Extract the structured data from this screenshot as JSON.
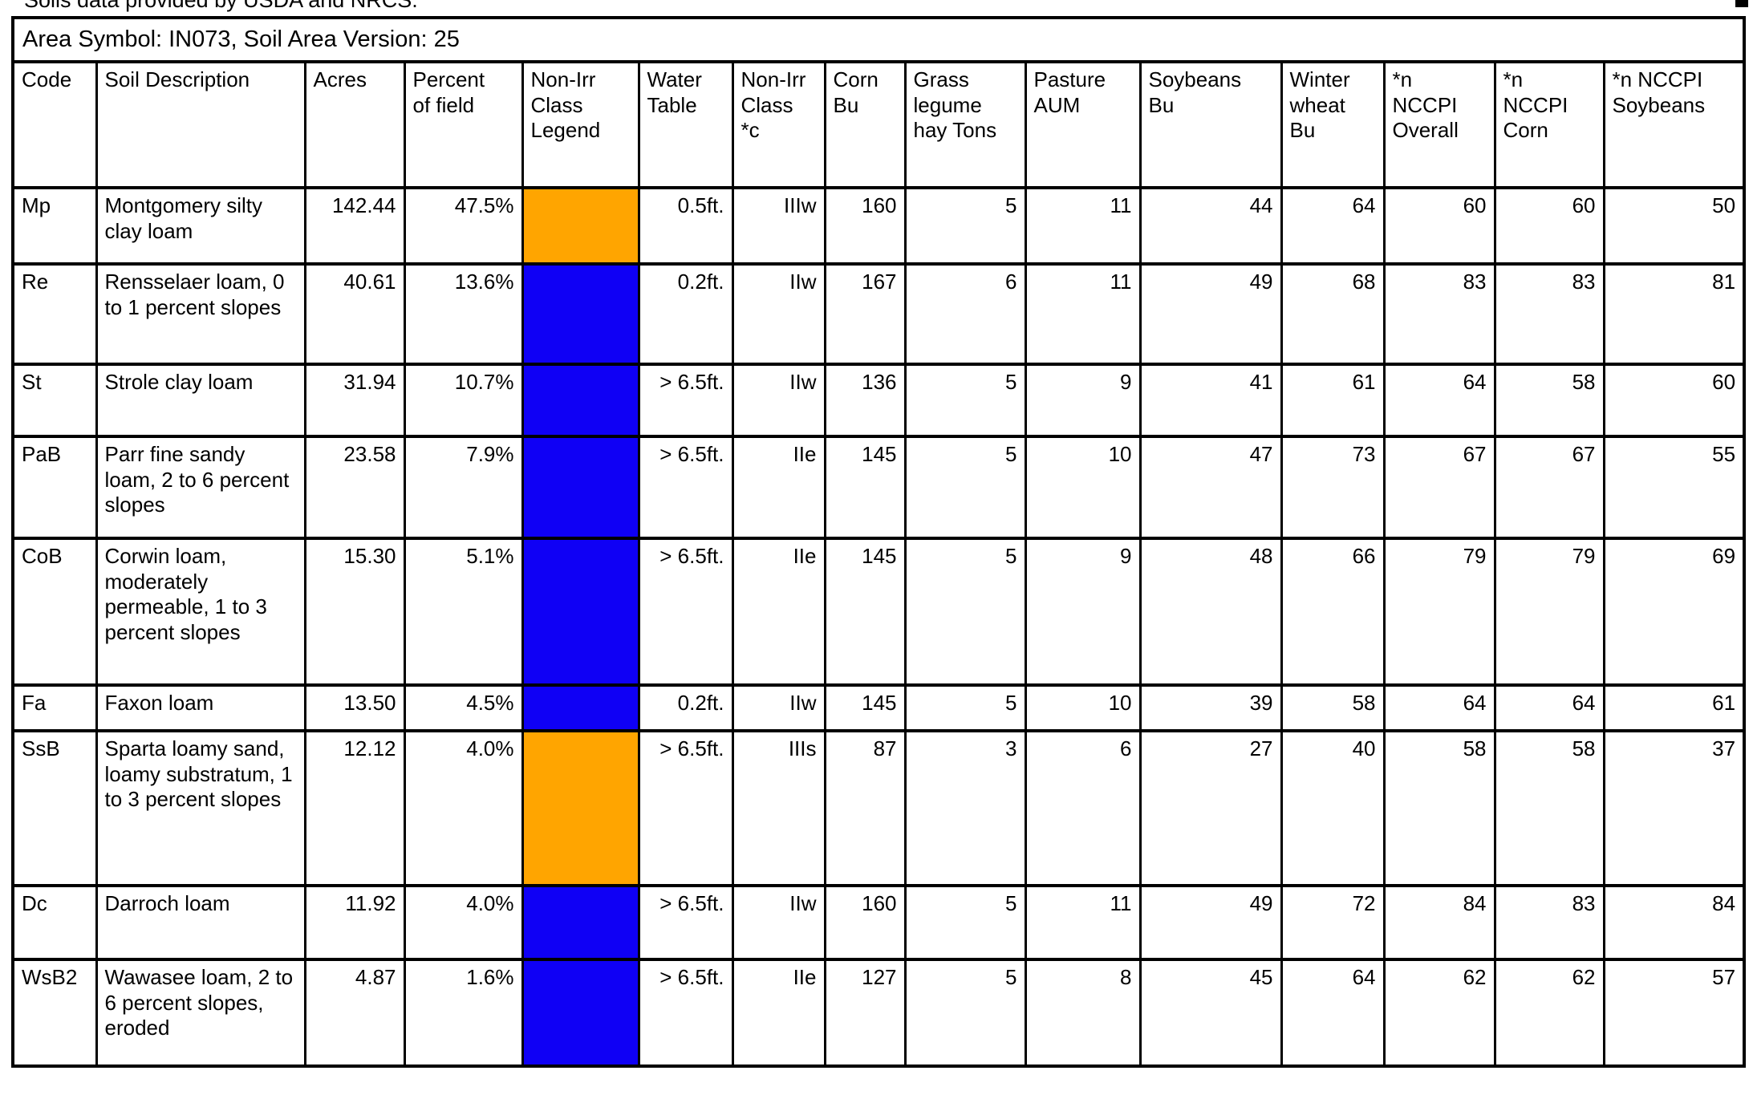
{
  "page": {
    "top_caption": "Soils data provided by USDA and NRCS.",
    "title": "Area Symbol: IN073, Soil Area Version: 25"
  },
  "legend_colors": {
    "orange": "#ffa500",
    "blue": "#0f00f5"
  },
  "table": {
    "columns": [
      {
        "key": "code",
        "label": "Code"
      },
      {
        "key": "description",
        "label": "Soil Description"
      },
      {
        "key": "acres",
        "label": "Acres"
      },
      {
        "key": "percent",
        "label": "Percent\nof field"
      },
      {
        "key": "legend",
        "label": "Non-Irr\nClass\nLegend"
      },
      {
        "key": "water",
        "label": "Water\nTable"
      },
      {
        "key": "nonirr_class",
        "label": "Non-Irr\nClass\n*c"
      },
      {
        "key": "corn",
        "label": "Corn\nBu"
      },
      {
        "key": "grass",
        "label": "Grass\nlegume\nhay Tons"
      },
      {
        "key": "pasture",
        "label": "Pasture\nAUM"
      },
      {
        "key": "soybeans",
        "label": "Soybeans\nBu"
      },
      {
        "key": "wheat",
        "label": "Winter\nwheat\nBu"
      },
      {
        "key": "nccpi_overall",
        "label": "*n\nNCCPI\nOverall"
      },
      {
        "key": "nccpi_corn",
        "label": "*n\nNCCPI\nCorn"
      },
      {
        "key": "nccpi_soybeans",
        "label": "*n NCCPI\nSoybeans"
      }
    ],
    "rows": [
      {
        "code": "Mp",
        "description": "Montgomery silty clay loam",
        "acres": "142.44",
        "percent": "47.5%",
        "legend": "orange",
        "water": "0.5ft.",
        "nonirr_class": "IIIw",
        "corn": "160",
        "grass": "5",
        "pasture": "11",
        "soybeans": "44",
        "wheat": "64",
        "nccpi_overall": "60",
        "nccpi_corn": "60",
        "nccpi_soybeans": "50"
      },
      {
        "code": "Re",
        "description": "Rensselaer loam, 0 to 1 percent slopes",
        "acres": "40.61",
        "percent": "13.6%",
        "legend": "blue",
        "water": "0.2ft.",
        "nonirr_class": "IIw",
        "corn": "167",
        "grass": "6",
        "pasture": "11",
        "soybeans": "49",
        "wheat": "68",
        "nccpi_overall": "83",
        "nccpi_corn": "83",
        "nccpi_soybeans": "81"
      },
      {
        "code": "St",
        "description": "Strole clay loam",
        "acres": "31.94",
        "percent": "10.7%",
        "legend": "blue",
        "water": "> 6.5ft.",
        "nonirr_class": "IIw",
        "corn": "136",
        "grass": "5",
        "pasture": "9",
        "soybeans": "41",
        "wheat": "61",
        "nccpi_overall": "64",
        "nccpi_corn": "58",
        "nccpi_soybeans": "60"
      },
      {
        "code": "PaB",
        "description": "Parr fine sandy loam, 2 to 6 percent slopes",
        "acres": "23.58",
        "percent": "7.9%",
        "legend": "blue",
        "water": "> 6.5ft.",
        "nonirr_class": "IIe",
        "corn": "145",
        "grass": "5",
        "pasture": "10",
        "soybeans": "47",
        "wheat": "73",
        "nccpi_overall": "67",
        "nccpi_corn": "67",
        "nccpi_soybeans": "55"
      },
      {
        "code": "CoB",
        "description": "Corwin loam, moderately permeable, 1 to 3 percent slopes",
        "acres": "15.30",
        "percent": "5.1%",
        "legend": "blue",
        "water": "> 6.5ft.",
        "nonirr_class": "IIe",
        "corn": "145",
        "grass": "5",
        "pasture": "9",
        "soybeans": "48",
        "wheat": "66",
        "nccpi_overall": "79",
        "nccpi_corn": "79",
        "nccpi_soybeans": "69"
      },
      {
        "code": "Fa",
        "description": "Faxon loam",
        "acres": "13.50",
        "percent": "4.5%",
        "legend": "blue",
        "water": "0.2ft.",
        "nonirr_class": "IIw",
        "corn": "145",
        "grass": "5",
        "pasture": "10",
        "soybeans": "39",
        "wheat": "58",
        "nccpi_overall": "64",
        "nccpi_corn": "64",
        "nccpi_soybeans": "61"
      },
      {
        "code": "SsB",
        "description": "Sparta loamy sand, loamy substratum, 1 to 3 percent slopes",
        "acres": "12.12",
        "percent": "4.0%",
        "legend": "orange",
        "water": "> 6.5ft.",
        "nonirr_class": "IIIs",
        "corn": "87",
        "grass": "3",
        "pasture": "6",
        "soybeans": "27",
        "wheat": "40",
        "nccpi_overall": "58",
        "nccpi_corn": "58",
        "nccpi_soybeans": "37"
      },
      {
        "code": "Dc",
        "description": "Darroch loam",
        "acres": "11.92",
        "percent": "4.0%",
        "legend": "blue",
        "water": "> 6.5ft.",
        "nonirr_class": "IIw",
        "corn": "160",
        "grass": "5",
        "pasture": "11",
        "soybeans": "49",
        "wheat": "72",
        "nccpi_overall": "84",
        "nccpi_corn": "83",
        "nccpi_soybeans": "84"
      },
      {
        "code": "WsB2",
        "description": "Wawasee loam, 2 to 6 percent slopes, eroded",
        "acres": "4.87",
        "percent": "1.6%",
        "legend": "blue",
        "water": "> 6.5ft.",
        "nonirr_class": "IIe",
        "corn": "127",
        "grass": "5",
        "pasture": "8",
        "soybeans": "45",
        "wheat": "64",
        "nccpi_overall": "62",
        "nccpi_corn": "62",
        "nccpi_soybeans": "57"
      }
    ]
  }
}
